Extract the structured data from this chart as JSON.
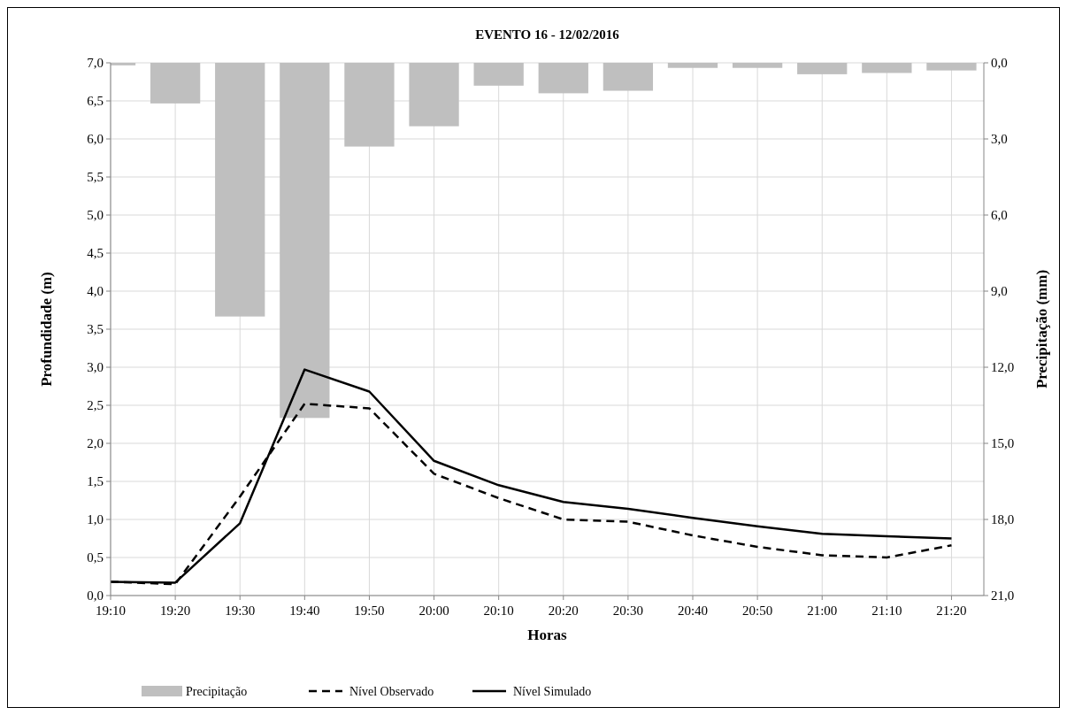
{
  "chart_data": {
    "type": "line",
    "title": "EVENTO 16 - 12/02/2016",
    "xlabel": "Horas",
    "ylabel": "Profundidade (m)",
    "y2label": "Precipitação (mm)",
    "categories": [
      "19:10",
      "19:20",
      "19:30",
      "19:40",
      "19:50",
      "20:00",
      "20:10",
      "20:20",
      "20:30",
      "20:40",
      "20:50",
      "21:00",
      "21:10",
      "21:20"
    ],
    "series": [
      {
        "name": "Precipitação",
        "type": "bar",
        "axis": "y2",
        "color": "#bfbfbf",
        "values": [
          0.1,
          1.6,
          10.0,
          14.0,
          3.3,
          2.5,
          0.9,
          1.2,
          1.1,
          0.2,
          0.2,
          0.45,
          0.4,
          0.3
        ]
      },
      {
        "name": "Nível Observado",
        "line_style": "dashed",
        "color": "#000000",
        "values": [
          0.18,
          0.15,
          1.3,
          2.52,
          2.46,
          1.6,
          1.28,
          1.0,
          0.97,
          0.79,
          0.64,
          0.53,
          0.5,
          0.66
        ]
      },
      {
        "name": "Nível Simulado",
        "line_style": "solid",
        "color": "#000000",
        "values": [
          0.18,
          0.17,
          0.95,
          2.97,
          2.68,
          1.77,
          1.45,
          1.23,
          1.14,
          1.02,
          0.91,
          0.81,
          0.78,
          0.75
        ]
      }
    ],
    "ylim": [
      0,
      7
    ],
    "yticks": [
      {
        "value": 0,
        "label": "0,0"
      },
      {
        "value": 0.5,
        "label": "0,5"
      },
      {
        "value": 1,
        "label": "1,0"
      },
      {
        "value": 1.5,
        "label": "1,5"
      },
      {
        "value": 2,
        "label": "2,0"
      },
      {
        "value": 2.5,
        "label": "2,5"
      },
      {
        "value": 3,
        "label": "3,0"
      },
      {
        "value": 3.5,
        "label": "3,5"
      },
      {
        "value": 4,
        "label": "4,0"
      },
      {
        "value": 4.5,
        "label": "4,5"
      },
      {
        "value": 5,
        "label": "5,0"
      },
      {
        "value": 5.5,
        "label": "5,5"
      },
      {
        "value": 6,
        "label": "6,0"
      },
      {
        "value": 6.5,
        "label": "6,5"
      },
      {
        "value": 7,
        "label": "7,0"
      }
    ],
    "y2lim": [
      21,
      0
    ],
    "y2ticks": [
      {
        "value": 0,
        "label": "0,0"
      },
      {
        "value": 3,
        "label": "3,0"
      },
      {
        "value": 6,
        "label": "6,0"
      },
      {
        "value": 9,
        "label": "9,0"
      },
      {
        "value": 12,
        "label": "12,0"
      },
      {
        "value": 15,
        "label": "15,0"
      },
      {
        "value": 18,
        "label": "18,0"
      },
      {
        "value": 21,
        "label": "21,0"
      }
    ],
    "grid": true,
    "legend": "bottom",
    "marker": "none"
  }
}
